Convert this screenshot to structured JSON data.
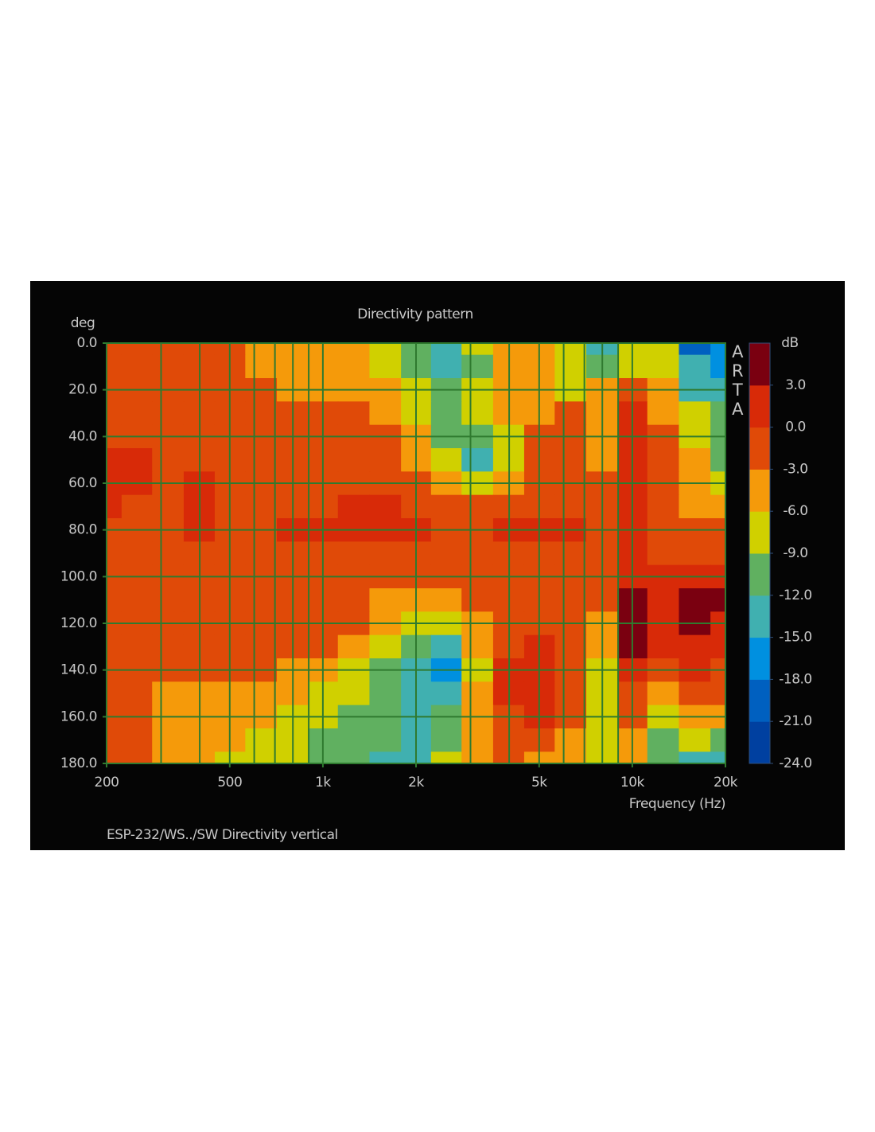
{
  "chart_data": {
    "type": "heatmap",
    "title": "Directivity pattern",
    "x_label": "Frequency (Hz)",
    "y_label": "deg",
    "watermark": "ARTA",
    "footer": "ESP-232/WS../SW   Directivity vertical",
    "x_log": true,
    "y_inverted": true,
    "grid": true,
    "grid_color": "#2f7a2f",
    "x": [
      200,
      250,
      315,
      400,
      500,
      630,
      800,
      1000,
      1250,
      1600,
      2000,
      2500,
      3150,
      4000,
      5000,
      6300,
      8000,
      10000,
      12500,
      16000,
      20000
    ],
    "y": [
      0,
      10,
      20,
      30,
      40,
      50,
      60,
      70,
      80,
      90,
      100,
      110,
      120,
      130,
      140,
      150,
      160,
      170,
      180
    ],
    "z": [
      [
        -1.5,
        -1.5,
        -1.5,
        -1.5,
        -1.5,
        -4.5,
        -4.5,
        -4.5,
        -4.5,
        -7.5,
        -10.5,
        -13.5,
        -7.5,
        -4.5,
        -4.5,
        -7.5,
        -13.5,
        -7.5,
        -7.5,
        -19.5,
        -16.5
      ],
      [
        -1.5,
        -1.5,
        -1.5,
        -1.5,
        -1.5,
        -4.5,
        -4.5,
        -4.5,
        -4.5,
        -7.5,
        -10.5,
        -13.5,
        -10.5,
        -4.5,
        -4.5,
        -7.5,
        -10.5,
        -7.5,
        -7.5,
        -13.5,
        -16.5
      ],
      [
        -1.5,
        -1.5,
        -1.5,
        -1.5,
        -1.5,
        -1.5,
        -4.5,
        -4.5,
        -4.5,
        -4.5,
        -7.5,
        -10.5,
        -7.5,
        -4.5,
        -4.5,
        -7.5,
        -4.5,
        -1.5,
        -4.5,
        -13.5,
        -13.5
      ],
      [
        -1.5,
        -1.5,
        -1.5,
        -1.5,
        -1.5,
        -1.5,
        -1.5,
        -1.5,
        -1.5,
        -4.5,
        -7.5,
        -10.5,
        -7.5,
        -4.5,
        -4.5,
        -1.5,
        -4.5,
        1.5,
        -4.5,
        -7.5,
        -10.5
      ],
      [
        -1.5,
        -1.5,
        -1.5,
        -1.5,
        -1.5,
        -1.5,
        -1.5,
        -1.5,
        -1.5,
        -1.5,
        -4.5,
        -10.5,
        -10.5,
        -7.5,
        -1.5,
        -1.5,
        -4.5,
        1.5,
        -1.5,
        -7.5,
        -10.5
      ],
      [
        1.5,
        1.5,
        -1.5,
        -1.5,
        -1.5,
        -1.5,
        -1.5,
        -1.5,
        -1.5,
        -1.5,
        -4.5,
        -7.5,
        -13.5,
        -7.5,
        -1.5,
        -1.5,
        -4.5,
        1.5,
        -1.5,
        -4.5,
        -10.5
      ],
      [
        1.5,
        1.5,
        -1.5,
        1.5,
        -1.5,
        -1.5,
        -1.5,
        -1.5,
        -1.5,
        -1.5,
        -1.5,
        -4.5,
        -7.5,
        -4.5,
        -1.5,
        -1.5,
        -1.5,
        1.5,
        -1.5,
        -4.5,
        -7.5
      ],
      [
        1.5,
        -1.5,
        -1.5,
        1.5,
        -1.5,
        -1.5,
        -1.5,
        -1.5,
        1.5,
        1.5,
        -1.5,
        -1.5,
        -1.5,
        -1.5,
        -1.5,
        -1.5,
        -1.5,
        1.5,
        -1.5,
        -4.5,
        -4.5
      ],
      [
        -1.5,
        -1.5,
        -1.5,
        1.5,
        -1.5,
        -1.5,
        1.5,
        1.5,
        1.5,
        1.5,
        1.5,
        -1.5,
        -1.5,
        1.5,
        1.5,
        1.5,
        -1.5,
        1.5,
        -1.5,
        -1.5,
        -1.5
      ],
      [
        -1.5,
        -1.5,
        -1.5,
        -1.5,
        -1.5,
        -1.5,
        -1.5,
        -1.5,
        -1.5,
        -1.5,
        -1.5,
        -1.5,
        -1.5,
        -1.5,
        -1.5,
        -1.5,
        -1.5,
        1.5,
        -1.5,
        -1.5,
        -1.5
      ],
      [
        -1.5,
        -1.5,
        -1.5,
        -1.5,
        -1.5,
        -1.5,
        -1.5,
        -1.5,
        -1.5,
        -1.5,
        -1.5,
        -1.5,
        -1.5,
        -1.5,
        -1.5,
        -1.5,
        -1.5,
        1.5,
        1.5,
        1.5,
        1.5
      ],
      [
        -1.5,
        -1.5,
        -1.5,
        -1.5,
        -1.5,
        -1.5,
        -1.5,
        -1.5,
        -1.5,
        -4.5,
        -4.5,
        -4.5,
        -1.5,
        -1.5,
        -1.5,
        -1.5,
        -1.5,
        4.5,
        1.5,
        4.5,
        4.5
      ],
      [
        -1.5,
        -1.5,
        -1.5,
        -1.5,
        -1.5,
        -1.5,
        -1.5,
        -1.5,
        -1.5,
        -4.5,
        -7.5,
        -7.5,
        -4.5,
        -1.5,
        -1.5,
        -1.5,
        -4.5,
        4.5,
        1.5,
        4.5,
        1.5
      ],
      [
        -1.5,
        -1.5,
        -1.5,
        -1.5,
        -1.5,
        -1.5,
        -1.5,
        -1.5,
        -4.5,
        -7.5,
        -10.5,
        -13.5,
        -4.5,
        -1.5,
        1.5,
        -1.5,
        -4.5,
        4.5,
        1.5,
        1.5,
        1.5
      ],
      [
        -1.5,
        -1.5,
        -1.5,
        -1.5,
        -1.5,
        -1.5,
        -4.5,
        -4.5,
        -7.5,
        -10.5,
        -13.5,
        -16.5,
        -7.5,
        1.5,
        1.5,
        -1.5,
        -7.5,
        1.5,
        -1.5,
        1.5,
        -1.5
      ],
      [
        -1.5,
        -1.5,
        -4.5,
        -4.5,
        -4.5,
        -4.5,
        -4.5,
        -7.5,
        -7.5,
        -10.5,
        -13.5,
        -13.5,
        -4.5,
        1.5,
        1.5,
        -1.5,
        -7.5,
        -1.5,
        -4.5,
        -1.5,
        -1.5
      ],
      [
        -1.5,
        -1.5,
        -4.5,
        -4.5,
        -4.5,
        -4.5,
        -7.5,
        -7.5,
        -10.5,
        -10.5,
        -13.5,
        -10.5,
        -4.5,
        -1.5,
        1.5,
        -1.5,
        -7.5,
        -1.5,
        -7.5,
        -4.5,
        -4.5
      ],
      [
        -1.5,
        -1.5,
        -4.5,
        -4.5,
        -4.5,
        -7.5,
        -7.5,
        -10.5,
        -10.5,
        -10.5,
        -13.5,
        -10.5,
        -4.5,
        -1.5,
        -1.5,
        -4.5,
        -7.5,
        -4.5,
        -10.5,
        -7.5,
        -10.5
      ],
      [
        -1.5,
        -1.5,
        -4.5,
        -4.5,
        -7.5,
        -7.5,
        -7.5,
        -10.5,
        -10.5,
        -13.5,
        -13.5,
        -7.5,
        -4.5,
        -1.5,
        -4.5,
        -4.5,
        -7.5,
        -4.5,
        -10.5,
        -13.5,
        -13.5
      ]
    ],
    "xlim": [
      200,
      20000
    ],
    "xticks": [
      200,
      500,
      {
        "value": 1000,
        "label": "1k"
      },
      {
        "value": 2000,
        "label": "2k"
      },
      {
        "value": 5000,
        "label": "5k"
      },
      {
        "value": 10000,
        "label": "10k"
      },
      {
        "value": 20000,
        "label": "20k"
      }
    ],
    "xminor": [
      300,
      400,
      600,
      700,
      800,
      900,
      3000,
      4000,
      6000,
      7000,
      8000,
      9000
    ],
    "ylim": [
      0,
      180
    ],
    "yticks": [
      {
        "value": 0,
        "label": "0.0"
      },
      {
        "value": 20,
        "label": "20.0"
      },
      {
        "value": 40,
        "label": "40.0"
      },
      {
        "value": 60,
        "label": "60.0"
      },
      {
        "value": 80,
        "label": "80.0"
      },
      {
        "value": 100,
        "label": "100.0"
      },
      {
        "value": 120,
        "label": "120.0"
      },
      {
        "value": 140,
        "label": "140.0"
      },
      {
        "value": 160,
        "label": "160.0"
      },
      {
        "value": 180,
        "label": "180.0"
      }
    ],
    "colorbar": {
      "label": "dB",
      "ylim": [
        -24,
        6
      ],
      "yticks": [
        {
          "value": 3,
          "label": "3.0"
        },
        {
          "value": 0,
          "label": "0.0"
        },
        {
          "value": -3,
          "label": "-3.0"
        },
        {
          "value": -6,
          "label": "-6.0"
        },
        {
          "value": -9,
          "label": "-9.0"
        },
        {
          "value": -12,
          "label": "-12.0"
        },
        {
          "value": -15,
          "label": "-15.0"
        },
        {
          "value": -18,
          "label": "-18.0"
        },
        {
          "value": -21,
          "label": "-21.0"
        },
        {
          "value": -24,
          "label": "-24.0"
        }
      ],
      "colors": [
        "#0040a0",
        "#0060c0",
        "#0090e0",
        "#40b0b0",
        "#60b060",
        "#d0d000",
        "#f59a0a",
        "#e04a08",
        "#d82a08",
        "#7a0010"
      ]
    }
  }
}
